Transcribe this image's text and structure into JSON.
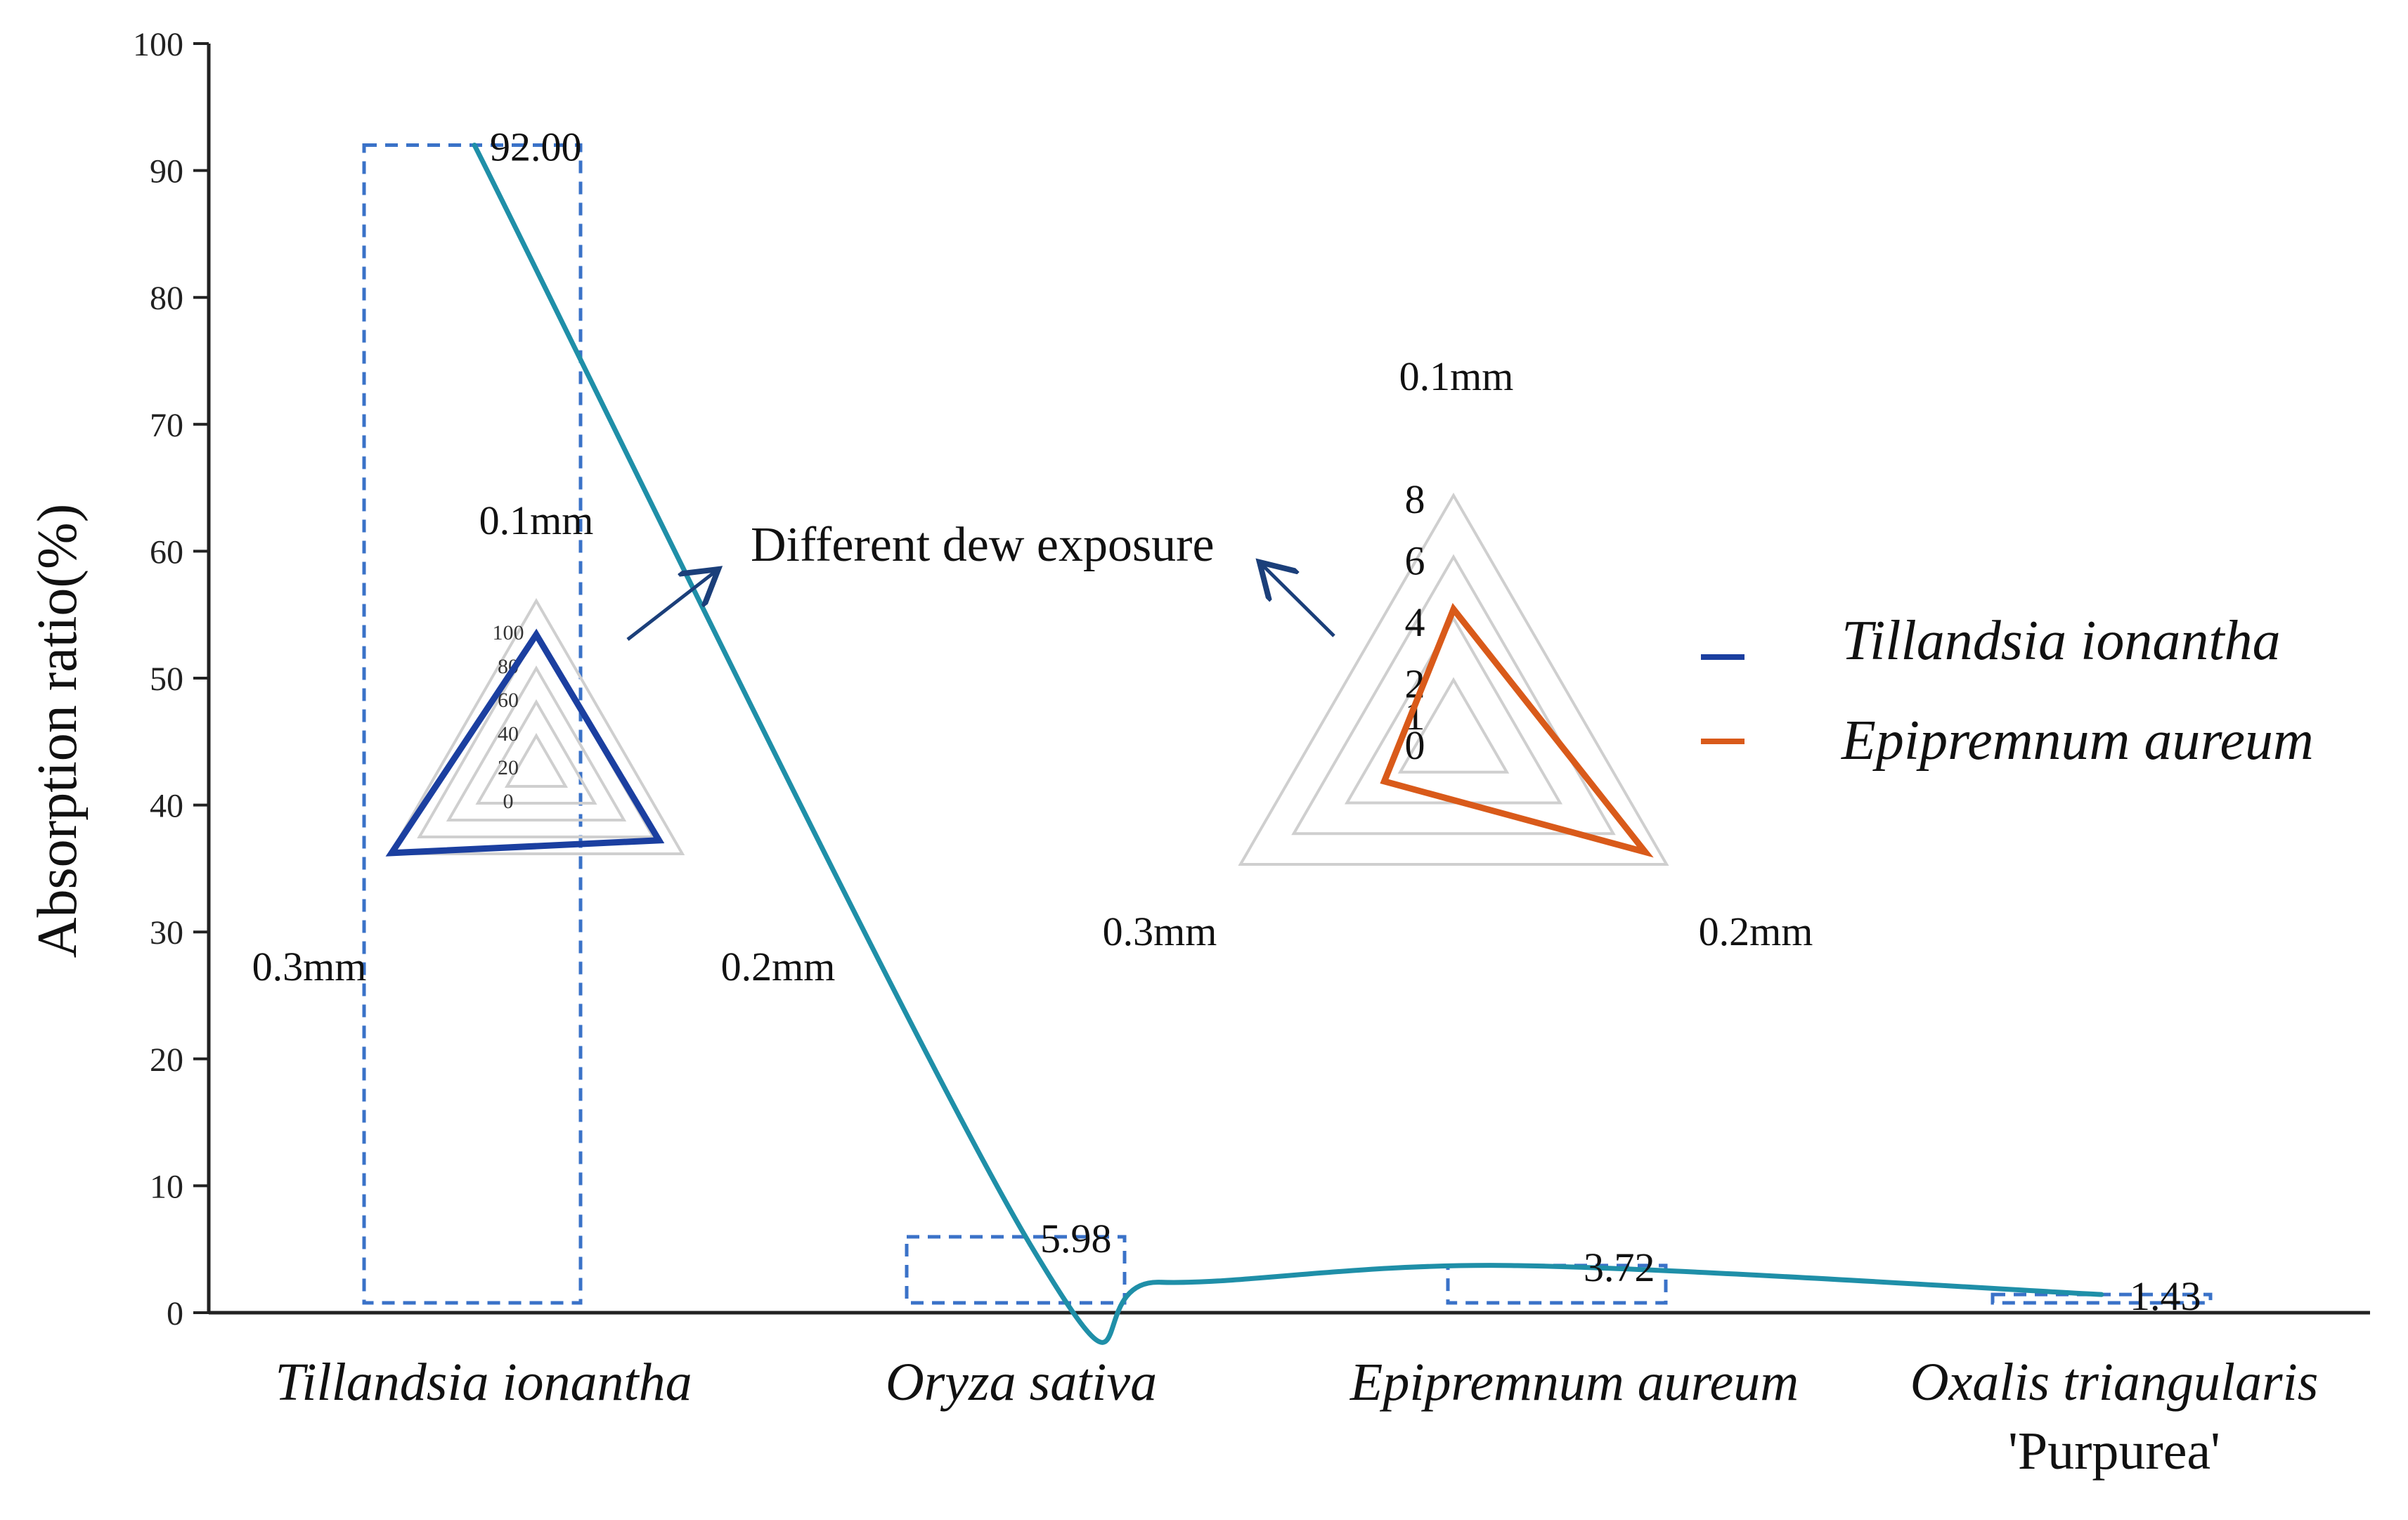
{
  "chart_data": [
    {
      "type": "line",
      "xlabel": "",
      "ylabel": "Absorption ratio(%)",
      "ylim": [
        0,
        100
      ],
      "yticks": [
        0,
        10,
        20,
        30,
        40,
        50,
        60,
        70,
        80,
        90,
        100
      ],
      "categories": [
        {
          "line1": "Tillandsia ionantha",
          "line2": ""
        },
        {
          "line1": "Oryza sativa",
          "line2": ""
        },
        {
          "line1": "Epipremnum aureum",
          "line2": ""
        },
        {
          "line1": "Oxalis triangularis",
          "line2": "'Purpurea'"
        }
      ],
      "values": [
        92.0,
        5.98,
        3.72,
        1.43
      ],
      "value_labels": [
        "92.00",
        "5.98",
        "3.72",
        "1.43"
      ],
      "grid": false,
      "line_color": "#1f8fa8"
    },
    {
      "type": "radar",
      "axes": [
        "0.1mm",
        "0.2mm",
        "0.3mm"
      ],
      "rlim": [
        0,
        100
      ],
      "ticks": [
        "0",
        "20",
        "40",
        "60",
        "80",
        "100"
      ],
      "series": [
        {
          "name": "Tillandsia ionantha",
          "values": [
            80,
            84,
            99
          ],
          "color": "#1b3fa0"
        }
      ]
    },
    {
      "type": "radar",
      "axes": [
        "0.1mm",
        "0.2mm",
        "0.3mm"
      ],
      "rlim": [
        0,
        8
      ],
      "ticks": [
        "0",
        "1",
        "2",
        "4",
        "6",
        "8"
      ],
      "series": [
        {
          "name": "Epipremnum aureum",
          "values": [
            4.3,
            7.2,
            2.6
          ],
          "color": "#d95a1a"
        }
      ]
    }
  ],
  "annotation": {
    "text": "Different dew exposure"
  },
  "legend": {
    "position": "right",
    "items": [
      {
        "name": "Tillandsia ionantha",
        "color": "#1b3fa0"
      },
      {
        "name": "Epipremnum aureum",
        "color": "#d95a1a"
      }
    ]
  }
}
